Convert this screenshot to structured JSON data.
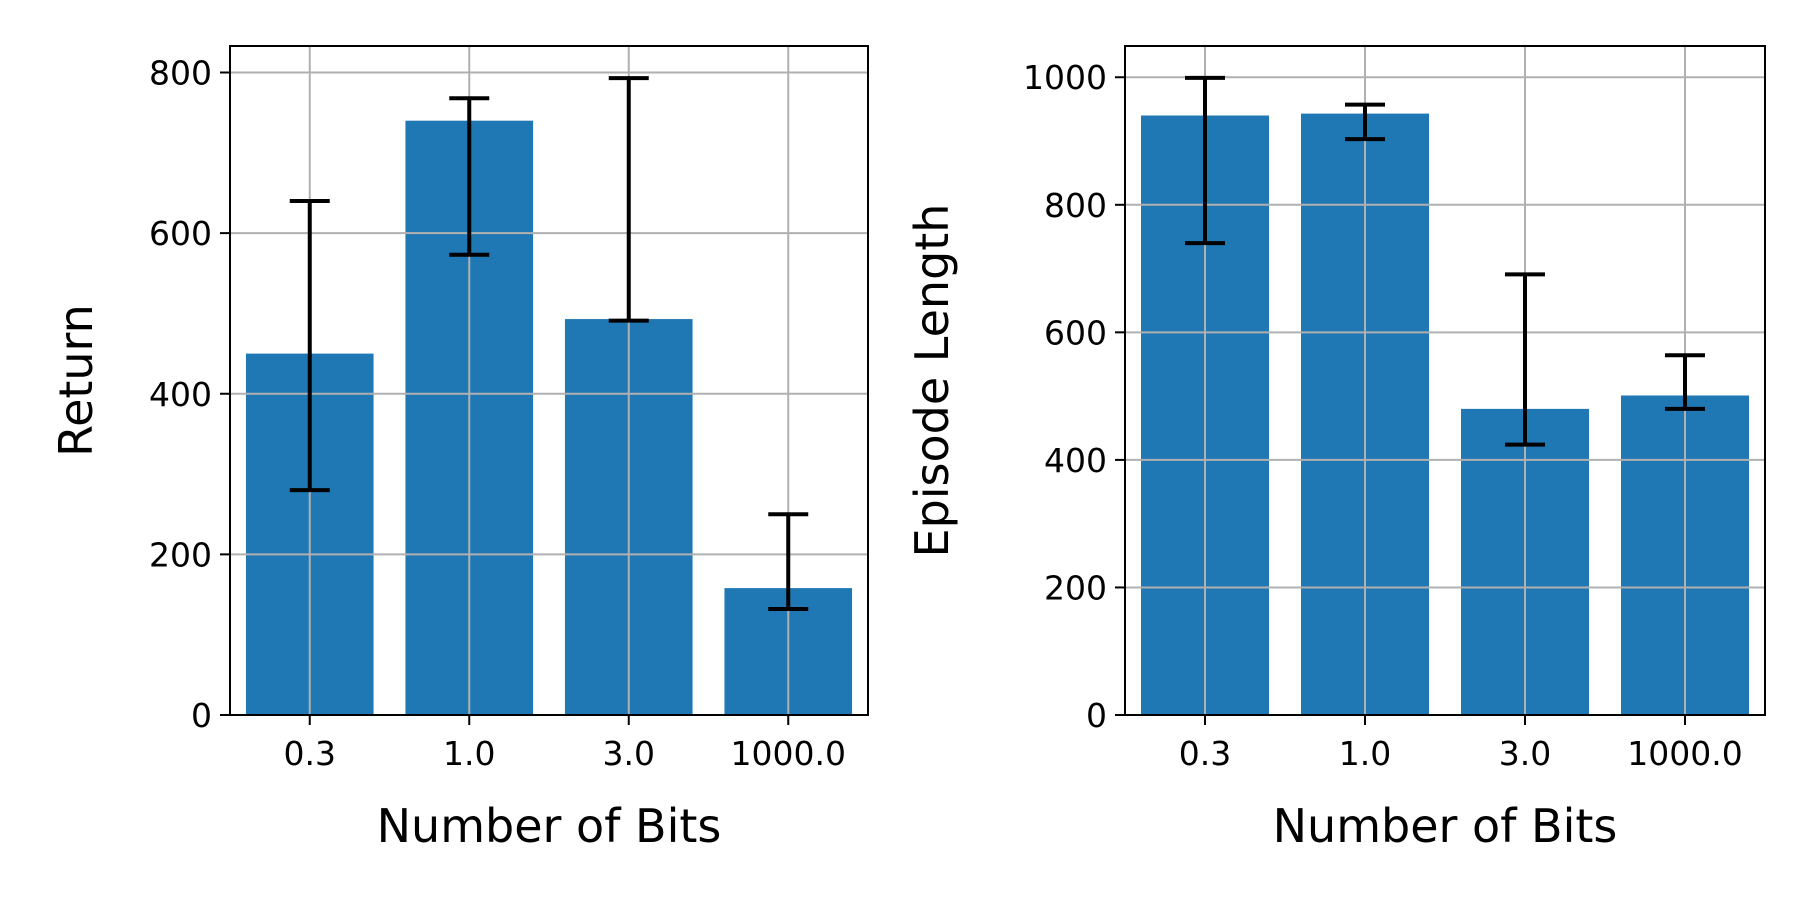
{
  "chart_data": [
    {
      "type": "bar",
      "title": "",
      "xlabel": "Number of Bits",
      "ylabel": "Return",
      "categories": [
        "0.3",
        "1.0",
        "3.0",
        "1000.0"
      ],
      "values": [
        450,
        740,
        493,
        158
      ],
      "error_low": [
        280,
        573,
        491,
        132
      ],
      "error_high": [
        640,
        768,
        793,
        250
      ],
      "ylim": [
        0,
        833
      ],
      "yticks": [
        0,
        200,
        400,
        600,
        800
      ],
      "grid": true,
      "bar_color": "#1f77b4",
      "error_color": "#000000"
    },
    {
      "type": "bar",
      "title": "",
      "xlabel": "Number of Bits",
      "ylabel": "Episode Length",
      "categories": [
        "0.3",
        "1.0",
        "3.0",
        "1000.0"
      ],
      "values": [
        940,
        943,
        480,
        501
      ],
      "error_low": [
        740,
        903,
        424,
        480
      ],
      "error_high": [
        999,
        957,
        691,
        564
      ],
      "ylim": [
        0,
        1049
      ],
      "yticks": [
        0,
        200,
        400,
        600,
        800,
        1000
      ],
      "grid": true,
      "bar_color": "#1f77b4",
      "error_color": "#000000"
    }
  ]
}
